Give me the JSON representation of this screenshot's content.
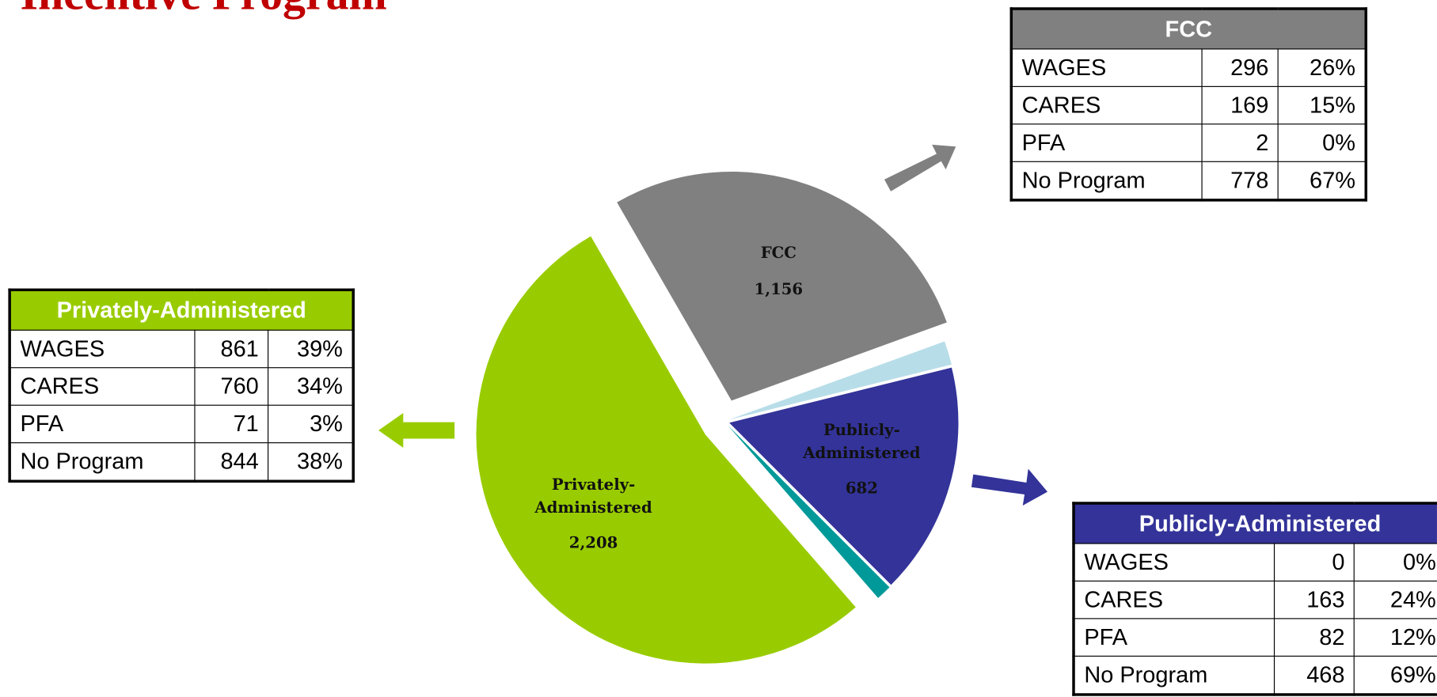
{
  "chart_data": {
    "type": "pie",
    "title": "Incentive Program",
    "categories": [
      "FCC",
      null,
      "Publicly-Administered",
      null,
      "Privately-Administered"
    ],
    "values": [
      1156,
      70,
      682,
      45,
      2208
    ],
    "value_labels": [
      "1,156",
      null,
      "682",
      null,
      "2,208"
    ],
    "colors": [
      "#808080",
      "#b7dde8",
      "#333399",
      "#009999",
      "#99cc00"
    ]
  },
  "tables": [
    {
      "title": "FCC",
      "color": "#808080",
      "rows": [
        [
          "WAGES",
          "296",
          "26%"
        ],
        [
          "CARES",
          "169",
          "15%"
        ],
        [
          "PFA",
          "2",
          "0%"
        ],
        [
          "No Program",
          "778",
          "67%"
        ]
      ]
    },
    {
      "title": "Privately-Administered",
      "color": "#99cc00",
      "rows": [
        [
          "WAGES",
          "861",
          "39%"
        ],
        [
          "CARES",
          "760",
          "34%"
        ],
        [
          "PFA",
          "71",
          "3%"
        ],
        [
          "No Program",
          "844",
          "38%"
        ]
      ]
    },
    {
      "title": "Publicly-Administered",
      "color": "#333399",
      "rows": [
        [
          "WAGES",
          "0",
          "0%"
        ],
        [
          "CARES",
          "163",
          "24%"
        ],
        [
          "PFA",
          "82",
          "12%"
        ],
        [
          "No Program",
          "468",
          "69%"
        ]
      ]
    }
  ]
}
